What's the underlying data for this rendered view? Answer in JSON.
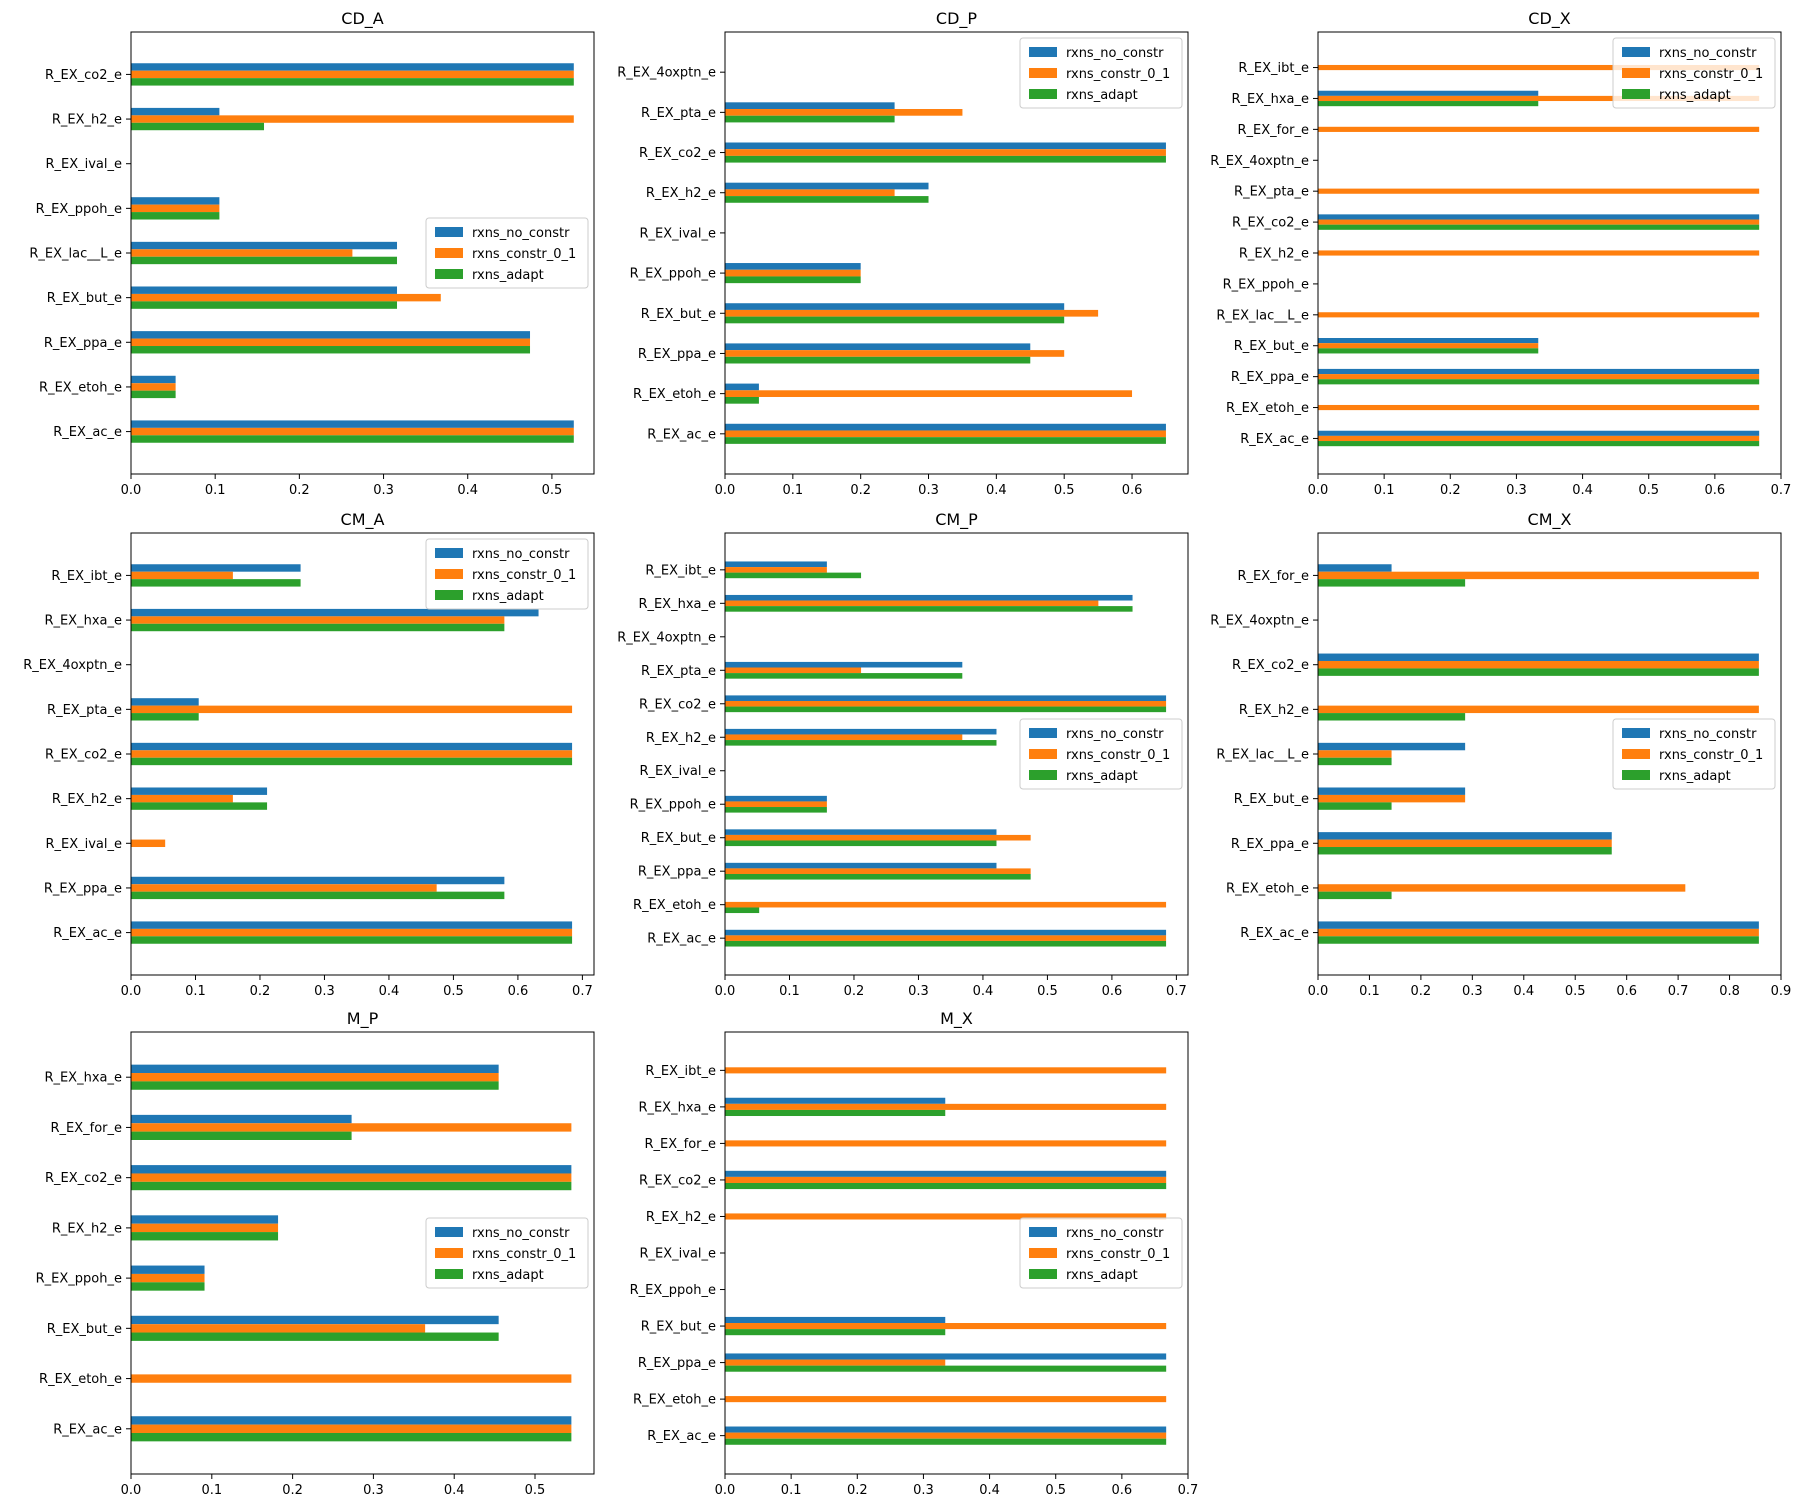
{
  "figure": {
    "colors": {
      "rxns_no_constr": "#1f77b4",
      "rxns_constr_0_1": "#ff7f0e",
      "rxns_adapt": "#2ca02c"
    }
  },
  "chart_data": [
    {
      "type": "bar",
      "orientation": "horizontal",
      "title": "CD_A",
      "categories": [
        "R_EX_ac_e",
        "R_EX_etoh_e",
        "R_EX_ppa_e",
        "R_EX_but_e",
        "R_EX_lac__L_e",
        "R_EX_ppoh_e",
        "R_EX_ival_e",
        "R_EX_h2_e",
        "R_EX_co2_e"
      ],
      "series": [
        {
          "name": "rxns_no_constr",
          "values": [
            0.526,
            0.053,
            0.474,
            0.316,
            0.316,
            0.105,
            0,
            0.105,
            0.526
          ]
        },
        {
          "name": "rxns_constr_0_1",
          "values": [
            0.526,
            0.053,
            0.474,
            0.368,
            0.263,
            0.105,
            0,
            0.526,
            0.526
          ]
        },
        {
          "name": "rxns_adapt",
          "values": [
            0.526,
            0.053,
            0.474,
            0.316,
            0.316,
            0.105,
            0,
            0.158,
            0.526
          ]
        }
      ],
      "xlim": [
        0,
        0.55
      ],
      "xticks": [
        "0.0",
        "0.1",
        "0.2",
        "0.3",
        "0.4",
        "0.5"
      ],
      "legend": "right-middle"
    },
    {
      "type": "bar",
      "orientation": "horizontal",
      "title": "CD_P",
      "categories": [
        "R_EX_ac_e",
        "R_EX_etoh_e",
        "R_EX_ppa_e",
        "R_EX_but_e",
        "R_EX_ppoh_e",
        "R_EX_ival_e",
        "R_EX_h2_e",
        "R_EX_co2_e",
        "R_EX_pta_e",
        "R_EX_4oxptn_e"
      ],
      "series": [
        {
          "name": "rxns_no_constr",
          "values": [
            0.65,
            0.05,
            0.45,
            0.5,
            0.2,
            0,
            0.3,
            0.65,
            0.25,
            0
          ]
        },
        {
          "name": "rxns_constr_0_1",
          "values": [
            0.65,
            0.6,
            0.5,
            0.55,
            0.2,
            0,
            0.25,
            0.65,
            0.35,
            0
          ]
        },
        {
          "name": "rxns_adapt",
          "values": [
            0.65,
            0.05,
            0.45,
            0.5,
            0.2,
            0,
            0.3,
            0.65,
            0.25,
            0
          ]
        }
      ],
      "xlim": [
        0,
        0.6825
      ],
      "xticks": [
        "0.0",
        "0.1",
        "0.2",
        "0.3",
        "0.4",
        "0.5",
        "0.6"
      ],
      "legend": "top-right"
    },
    {
      "type": "bar",
      "orientation": "horizontal",
      "title": "CD_X",
      "categories": [
        "R_EX_ac_e",
        "R_EX_etoh_e",
        "R_EX_ppa_e",
        "R_EX_but_e",
        "R_EX_lac__L_e",
        "R_EX_ppoh_e",
        "R_EX_h2_e",
        "R_EX_co2_e",
        "R_EX_pta_e",
        "R_EX_4oxptn_e",
        "R_EX_for_e",
        "R_EX_hxa_e",
        "R_EX_ibt_e"
      ],
      "series": [
        {
          "name": "rxns_no_constr",
          "values": [
            0.667,
            0,
            0.667,
            0.333,
            0,
            0,
            0,
            0.667,
            0,
            0,
            0,
            0.333,
            0
          ]
        },
        {
          "name": "rxns_constr_0_1",
          "values": [
            0.667,
            0.667,
            0.667,
            0.333,
            0.667,
            0,
            0.667,
            0.667,
            0.667,
            0,
            0.667,
            0.667,
            0.667
          ]
        },
        {
          "name": "rxns_adapt",
          "values": [
            0.667,
            0,
            0.667,
            0.333,
            0,
            0,
            0,
            0.667,
            0,
            0,
            0,
            0.333,
            0
          ]
        }
      ],
      "xlim": [
        0,
        0.7
      ],
      "xticks": [
        "0.0",
        "0.1",
        "0.2",
        "0.3",
        "0.4",
        "0.5",
        "0.6",
        "0.7"
      ],
      "legend": "top-right"
    },
    {
      "type": "bar",
      "orientation": "horizontal",
      "title": "CM_A",
      "categories": [
        "R_EX_ac_e",
        "R_EX_ppa_e",
        "R_EX_ival_e",
        "R_EX_h2_e",
        "R_EX_co2_e",
        "R_EX_pta_e",
        "R_EX_4oxptn_e",
        "R_EX_hxa_e",
        "R_EX_ibt_e"
      ],
      "series": [
        {
          "name": "rxns_no_constr",
          "values": [
            0.684,
            0.579,
            0,
            0.211,
            0.684,
            0.105,
            0,
            0.632,
            0.263
          ]
        },
        {
          "name": "rxns_constr_0_1",
          "values": [
            0.684,
            0.474,
            0.053,
            0.158,
            0.684,
            0.684,
            0,
            0.579,
            0.158
          ]
        },
        {
          "name": "rxns_adapt",
          "values": [
            0.684,
            0.579,
            0,
            0.211,
            0.684,
            0.105,
            0,
            0.579,
            0.263
          ]
        }
      ],
      "xlim": [
        0,
        0.718
      ],
      "xticks": [
        "0.0",
        "0.1",
        "0.2",
        "0.3",
        "0.4",
        "0.5",
        "0.6",
        "0.7"
      ],
      "legend": "top-right"
    },
    {
      "type": "bar",
      "orientation": "horizontal",
      "title": "CM_P",
      "categories": [
        "R_EX_ac_e",
        "R_EX_etoh_e",
        "R_EX_ppa_e",
        "R_EX_but_e",
        "R_EX_ppoh_e",
        "R_EX_ival_e",
        "R_EX_h2_e",
        "R_EX_co2_e",
        "R_EX_pta_e",
        "R_EX_4oxptn_e",
        "R_EX_hxa_e",
        "R_EX_ibt_e"
      ],
      "series": [
        {
          "name": "rxns_no_constr",
          "values": [
            0.684,
            0,
            0.421,
            0.421,
            0.158,
            0,
            0.421,
            0.684,
            0.368,
            0,
            0.632,
            0.158
          ]
        },
        {
          "name": "rxns_constr_0_1",
          "values": [
            0.684,
            0.684,
            0.474,
            0.474,
            0.158,
            0,
            0.368,
            0.684,
            0.211,
            0,
            0.579,
            0.158
          ]
        },
        {
          "name": "rxns_adapt",
          "values": [
            0.684,
            0.053,
            0.474,
            0.421,
            0.158,
            0,
            0.421,
            0.684,
            0.368,
            0,
            0.632,
            0.211
          ]
        }
      ],
      "xlim": [
        0,
        0.718
      ],
      "xticks": [
        "0.0",
        "0.1",
        "0.2",
        "0.3",
        "0.4",
        "0.5",
        "0.6",
        "0.7"
      ],
      "legend": "right-middle"
    },
    {
      "type": "bar",
      "orientation": "horizontal",
      "title": "CM_X",
      "categories": [
        "R_EX_ac_e",
        "R_EX_etoh_e",
        "R_EX_ppa_e",
        "R_EX_but_e",
        "R_EX_lac__L_e",
        "R_EX_h2_e",
        "R_EX_co2_e",
        "R_EX_4oxptn_e",
        "R_EX_for_e"
      ],
      "series": [
        {
          "name": "rxns_no_constr",
          "values": [
            0.857,
            0,
            0.571,
            0.286,
            0.286,
            0,
            0.857,
            0,
            0.143
          ]
        },
        {
          "name": "rxns_constr_0_1",
          "values": [
            0.857,
            0.714,
            0.571,
            0.286,
            0.143,
            0.857,
            0.857,
            0,
            0.857
          ]
        },
        {
          "name": "rxns_adapt",
          "values": [
            0.857,
            0.143,
            0.571,
            0.143,
            0.143,
            0.286,
            0.857,
            0,
            0.286
          ]
        }
      ],
      "xlim": [
        0,
        0.9
      ],
      "xticks": [
        "0.0",
        "0.1",
        "0.2",
        "0.3",
        "0.4",
        "0.5",
        "0.6",
        "0.7",
        "0.8",
        "0.9"
      ],
      "legend": "right-middle"
    },
    {
      "type": "bar",
      "orientation": "horizontal",
      "title": "M_P",
      "categories": [
        "R_EX_ac_e",
        "R_EX_etoh_e",
        "R_EX_but_e",
        "R_EX_ppoh_e",
        "R_EX_h2_e",
        "R_EX_co2_e",
        "R_EX_for_e",
        "R_EX_hxa_e"
      ],
      "series": [
        {
          "name": "rxns_no_constr",
          "values": [
            0.545,
            0,
            0.455,
            0.091,
            0.182,
            0.545,
            0.273,
            0.455
          ]
        },
        {
          "name": "rxns_constr_0_1",
          "values": [
            0.545,
            0.545,
            0.364,
            0.091,
            0.182,
            0.545,
            0.545,
            0.455
          ]
        },
        {
          "name": "rxns_adapt",
          "values": [
            0.545,
            0,
            0.455,
            0.091,
            0.182,
            0.545,
            0.273,
            0.455
          ]
        }
      ],
      "xlim": [
        0,
        0.573
      ],
      "xticks": [
        "0.0",
        "0.1",
        "0.2",
        "0.3",
        "0.4",
        "0.5"
      ],
      "legend": "right-middle"
    },
    {
      "type": "bar",
      "orientation": "horizontal",
      "title": "M_X",
      "categories": [
        "R_EX_ac_e",
        "R_EX_etoh_e",
        "R_EX_ppa_e",
        "R_EX_but_e",
        "R_EX_ppoh_e",
        "R_EX_ival_e",
        "R_EX_h2_e",
        "R_EX_co2_e",
        "R_EX_for_e",
        "R_EX_hxa_e",
        "R_EX_ibt_e"
      ],
      "series": [
        {
          "name": "rxns_no_constr",
          "values": [
            0.667,
            0,
            0.667,
            0.333,
            0,
            0,
            0,
            0.667,
            0,
            0.333,
            0
          ]
        },
        {
          "name": "rxns_constr_0_1",
          "values": [
            0.667,
            0.667,
            0.333,
            0.667,
            0,
            0,
            0.667,
            0.667,
            0.667,
            0.667,
            0.667
          ]
        },
        {
          "name": "rxns_adapt",
          "values": [
            0.667,
            0,
            0.667,
            0.333,
            0,
            0,
            0,
            0.667,
            0,
            0.333,
            0
          ]
        }
      ],
      "xlim": [
        0,
        0.7
      ],
      "xticks": [
        "0.0",
        "0.1",
        "0.2",
        "0.3",
        "0.4",
        "0.5",
        "0.6",
        "0.7"
      ],
      "legend": "right-middle"
    }
  ]
}
